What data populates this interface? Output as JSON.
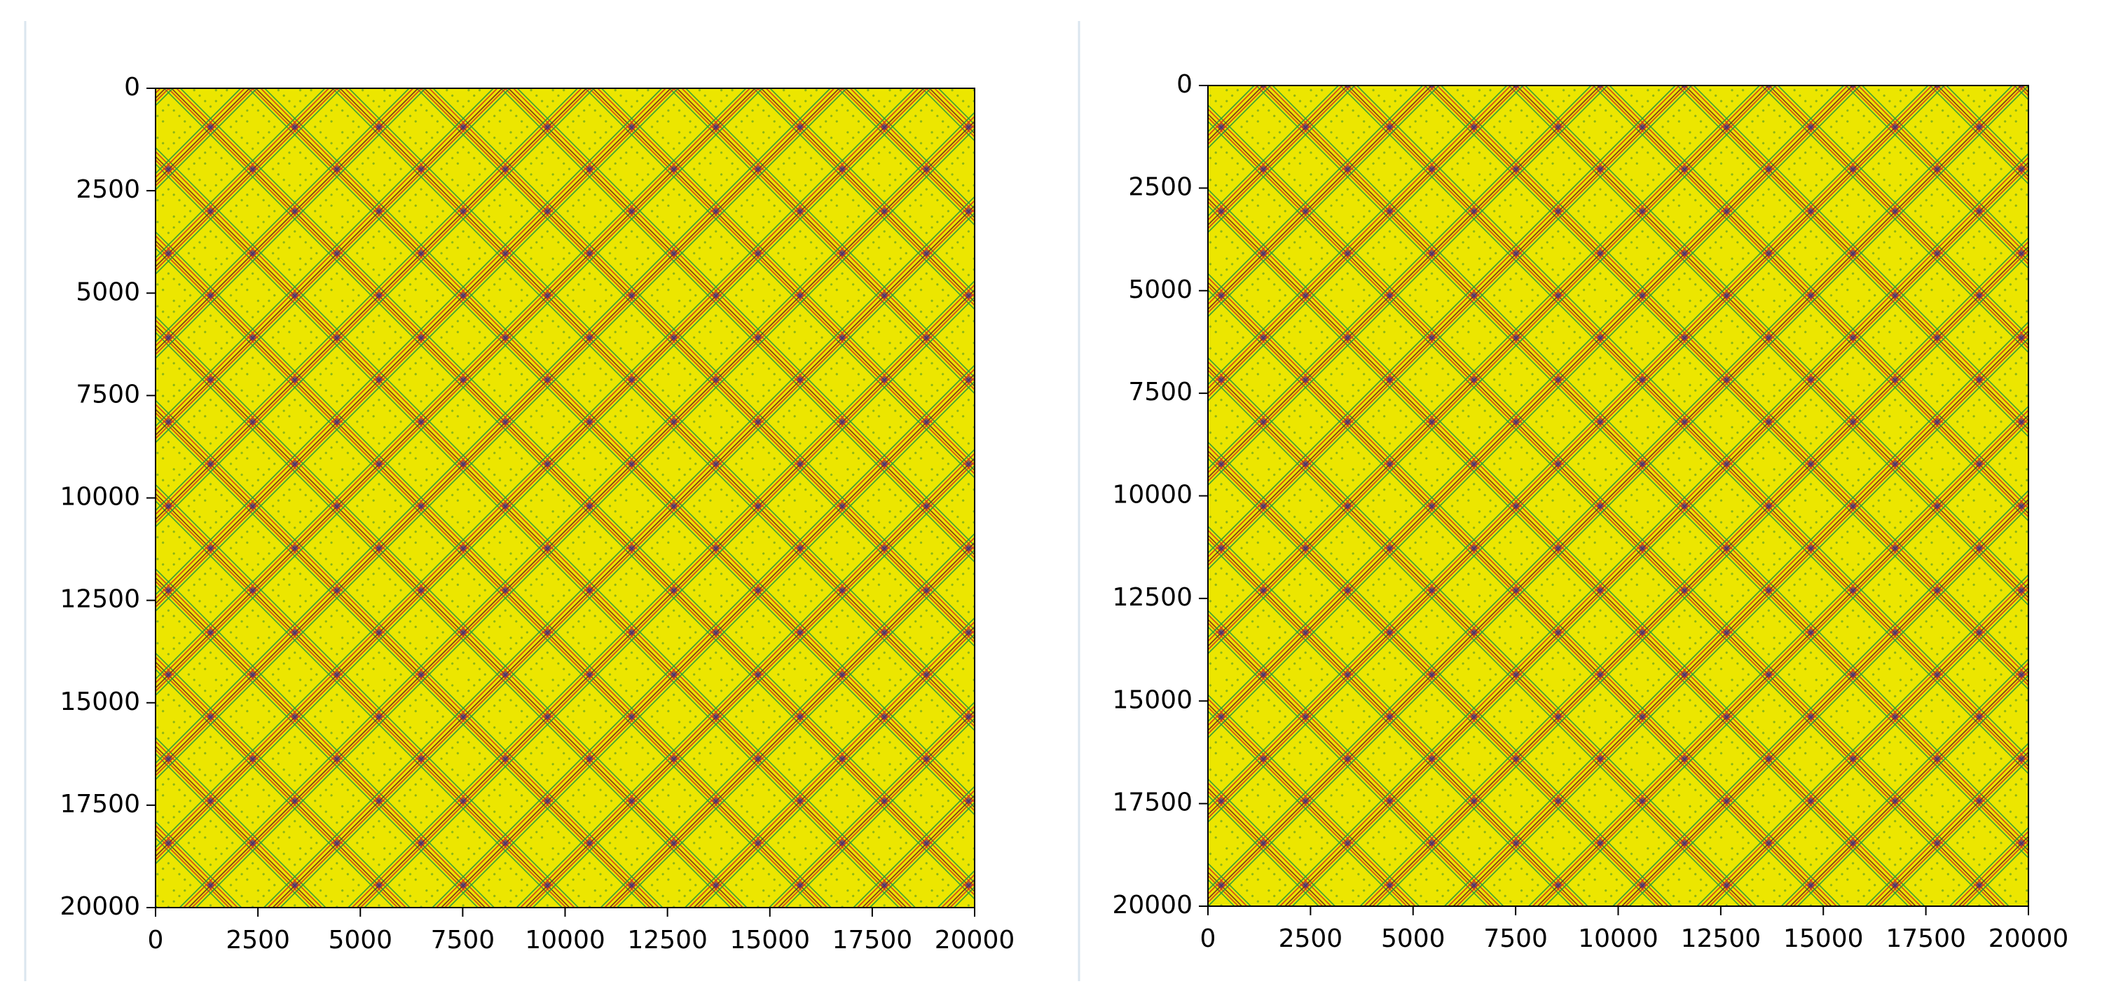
{
  "chart_data": [
    {
      "type": "image",
      "xlim": [
        0,
        20000
      ],
      "xticks": [
        0,
        2500,
        5000,
        7500,
        10000,
        12500,
        15000,
        17500,
        20000
      ],
      "ylim": [
        20000,
        0
      ],
      "yticks": [
        0,
        2500,
        5000,
        7500,
        10000,
        12500,
        15000,
        17500,
        20000
      ]
    },
    {
      "type": "image",
      "xlim": [
        0,
        20000
      ],
      "xticks": [
        0,
        2500,
        5000,
        7500,
        10000,
        12500,
        15000,
        17500,
        20000
      ],
      "ylim": [
        20000,
        0
      ],
      "yticks": [
        0,
        2500,
        5000,
        7500,
        10000,
        12500,
        15000,
        17500,
        20000
      ]
    }
  ]
}
